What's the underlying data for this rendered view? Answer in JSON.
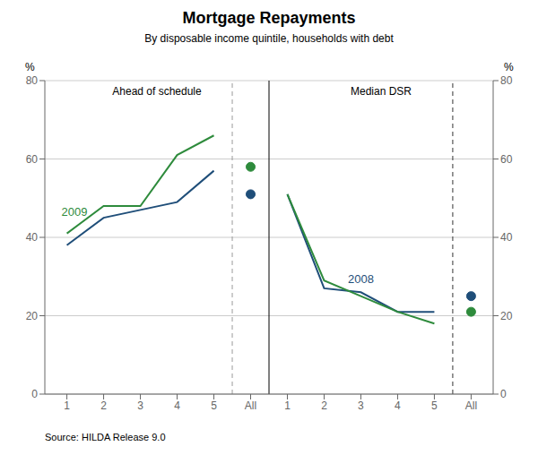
{
  "chart_data": {
    "type": "line",
    "title": "Mortgage Repayments",
    "subtitle": "By disposable income quintile, households with debt",
    "source": "Source: HILDA Release 9.0",
    "categories": [
      "1",
      "2",
      "3",
      "4",
      "5",
      "All",
      "1",
      "2",
      "3",
      "4",
      "5",
      "All"
    ],
    "series": [
      {
        "name": "2008",
        "type": "line",
        "color": "#1f4e79",
        "values": [
          38,
          45,
          47,
          49,
          57,
          null,
          51,
          27,
          26,
          21,
          21,
          null
        ]
      },
      {
        "name": "2009",
        "type": "line",
        "color": "#2e8b3c",
        "values": [
          41,
          48,
          48,
          61,
          66,
          null,
          51,
          29,
          25,
          21,
          18,
          null
        ]
      },
      {
        "name": "2008",
        "type": "scatter",
        "marker": "circle",
        "color": "#1f4e79",
        "values": [
          null,
          null,
          null,
          null,
          null,
          51,
          null,
          null,
          null,
          null,
          null,
          25
        ]
      },
      {
        "name": "2009",
        "type": "scatter",
        "marker": "circle",
        "color": "#2e8b3c",
        "values": [
          null,
          null,
          null,
          null,
          null,
          58,
          null,
          null,
          null,
          null,
          null,
          21
        ]
      }
    ],
    "ylim": [
      0,
      80
    ],
    "yticks": [
      0,
      20,
      40,
      60,
      80
    ],
    "y2lim": [
      0,
      80
    ],
    "y2ticks": [
      0,
      20,
      40,
      60,
      80
    ],
    "y_label": "%",
    "y2_label": "%",
    "annotations": [
      "Ahead of schedule",
      "Median DSR"
    ],
    "grid": true
  }
}
